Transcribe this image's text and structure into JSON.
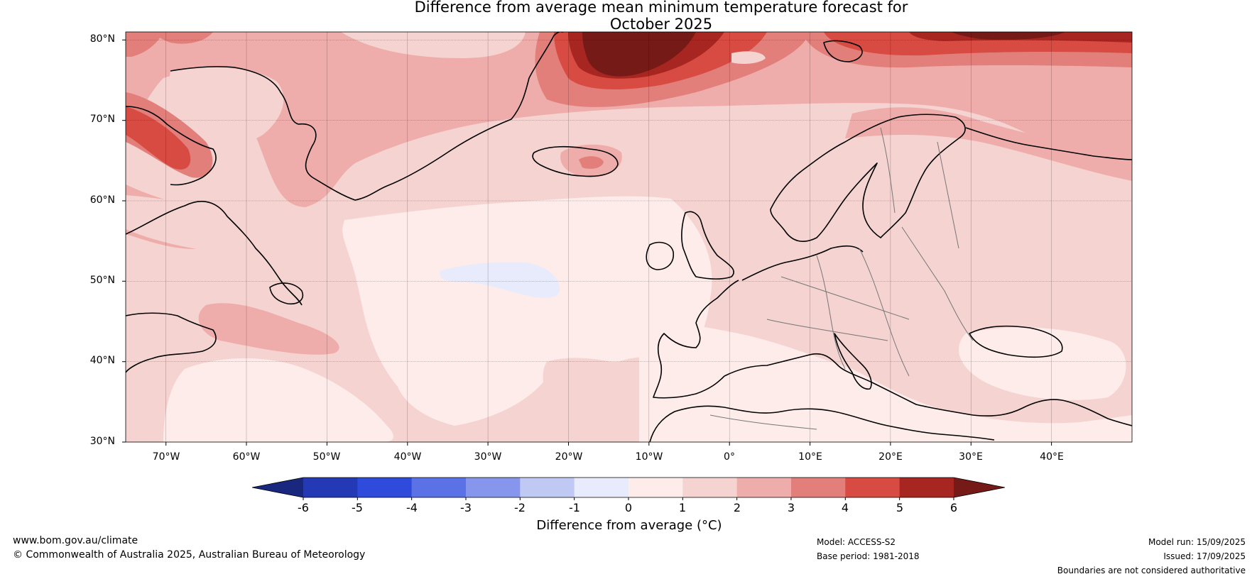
{
  "title": {
    "line1": "Difference from average mean minimum temperature forecast for",
    "line2": "October 2025"
  },
  "map": {
    "lat_labels": [
      "80°N",
      "70°N",
      "60°N",
      "50°N",
      "40°N",
      "30°N"
    ],
    "lon_labels": [
      "70°W",
      "60°W",
      "50°W",
      "40°W",
      "30°W",
      "20°W",
      "10°W",
      "0°",
      "10°E",
      "20°E",
      "30°E",
      "40°E"
    ]
  },
  "colorbar": {
    "ticks": [
      "-6",
      "-5",
      "-4",
      "-3",
      "-2",
      "-1",
      "0",
      "1",
      "2",
      "3",
      "4",
      "5",
      "6"
    ],
    "colors": [
      "#19287e",
      "#2339b5",
      "#2f4bdc",
      "#5b72e6",
      "#8596ec",
      "#c0c9f4",
      "#e7ebfc",
      "#fdecea",
      "#f5d3d1",
      "#eeadab",
      "#e27f7a",
      "#d84b42",
      "#a82621",
      "#751a16"
    ],
    "label": "Difference from average (°C)"
  },
  "footer": {
    "website": "www.bom.gov.au/climate",
    "copyright": "© Commonwealth of Australia 2025, Australian Bureau of Meteorology",
    "model": "Model: ACCESS-S2",
    "base_period": "Base period: 1981-2018",
    "model_run": "Model run: 15/09/2025",
    "issued": "Issued: 17/09/2025",
    "disclaimer": "Boundaries are not considered authoritative"
  }
}
